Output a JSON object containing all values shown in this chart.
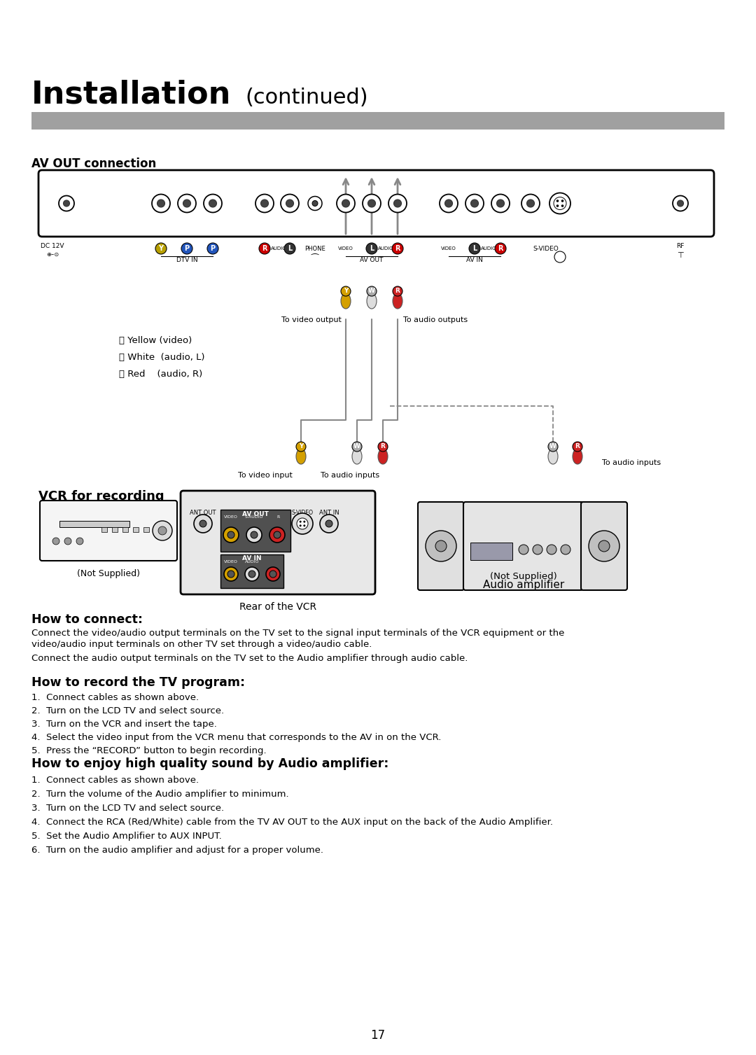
{
  "title_bold": "Installation",
  "title_normal": "(continued)",
  "section1": "AV OUT connection",
  "how_to_connect_title": "How to connect:",
  "how_to_connect_body1": "Connect the video/audio output terminals on the TV set to the signal input terminals of the VCR equipment or the",
  "how_to_connect_body2": "video/audio input terminals on other TV set through a video/audio cable.",
  "how_to_connect_body3": "Connect the audio output terminals on the TV set to the Audio amplifier through audio cable.",
  "record_title": "How to record the TV program:",
  "record_steps": [
    "1.  Connect cables as shown above.",
    "2.  Turn on the LCD TV and select source.",
    "3.  Turn on the VCR and insert the tape.",
    "4.  Select the video input from the VCR menu that corresponds to the AV in on the VCR.",
    "5.  Press the “RECORD” button to begin recording."
  ],
  "audio_title": "How to enjoy high quality sound by Audio amplifier:",
  "audio_steps": [
    "1.  Connect cables as shown above.",
    "2.  Turn the volume of the Audio amplifier to minimum.",
    "3.  Turn on the LCD TV and select source.",
    "4.  Connect the RCA (Red/White) cable from the TV AV OUT to the AUX input on the back of the Audio Amplifier.",
    "5.  Set the Audio Amplifier to AUX INPUT.",
    "6.  Turn on the audio amplifier and adjust for a proper volume."
  ],
  "page_number": "17",
  "legend_y": "ⓨ Yellow (video)",
  "legend_w": "Ⓦ White  (audio, L)",
  "legend_r": "Ⓡ Red    (audio, R)",
  "label_video_output": "To video output",
  "label_audio_outputs": "To audio outputs",
  "label_video_input": "To video input",
  "label_audio_inputs": "To audio inputs",
  "label_audio_inputs2": "To audio inputs",
  "label_vcr": "VCR for recording",
  "label_not_supplied1": "(Not Supplied)",
  "label_rear_vcr": "Rear of the VCR",
  "label_audio_amp": "Audio amplifier",
  "label_not_supplied2": "(Not Supplied)",
  "bg_color": "#ffffff",
  "bar_color": "#a0a0a0",
  "text_color": "#000000"
}
